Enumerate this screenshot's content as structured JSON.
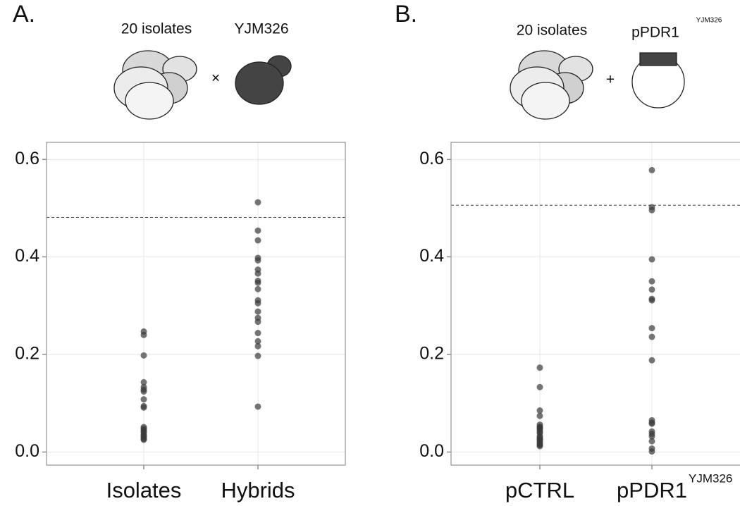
{
  "chart_data": [
    {
      "type": "strip",
      "panel_label": "A.",
      "annotations": [
        "20 isolates",
        "YJM326",
        "×"
      ],
      "categories": [
        "Isolates",
        "Hybrids"
      ],
      "series": [
        {
          "color": "#3a3a3a",
          "values": [
            0.247,
            0.24,
            0.198,
            0.143,
            0.133,
            0.128,
            0.124,
            0.108,
            0.094,
            0.091,
            0.051,
            0.048,
            0.045,
            0.042,
            0.04,
            0.035,
            0.033,
            0.03,
            0.027,
            0.025
          ]
        },
        {
          "color": "#3a3a3a",
          "values": [
            0.512,
            0.454,
            0.434,
            0.398,
            0.393,
            0.374,
            0.366,
            0.351,
            0.347,
            0.334,
            0.311,
            0.305,
            0.288,
            0.275,
            0.267,
            0.244,
            0.227,
            0.217,
            0.197,
            0.093
          ]
        }
      ],
      "hline": 0.481,
      "ylim": [
        -0.027,
        0.635
      ],
      "yticks": [
        {
          "value": 0,
          "label": "0.0"
        },
        0.2,
        0.4,
        0.6
      ],
      "grid": true
    },
    {
      "type": "strip",
      "panel_label": "B.",
      "annotations": [
        "20 isolates",
        "pPDR1",
        "YJM326",
        "+"
      ],
      "categories": [
        "pCTRL",
        "pPDR1"
      ],
      "category_superscripts": [
        null,
        "YJM326"
      ],
      "series": [
        {
          "color": "#3a3a3a",
          "values": [
            0.173,
            0.133,
            0.085,
            0.074,
            0.056,
            0.052,
            0.05,
            0.048,
            0.045,
            0.041,
            0.039,
            0.033,
            0.03,
            0.027,
            0.025,
            0.022,
            0.019,
            0.016,
            0.014,
            0.012
          ]
        },
        {
          "color": "#3a3a3a",
          "values": [
            0.578,
            0.502,
            0.496,
            0.395,
            0.35,
            0.333,
            0.314,
            0.311,
            0.254,
            0.236,
            0.188,
            0.065,
            0.06,
            0.058,
            0.042,
            0.037,
            0.032,
            0.022,
            0.007,
            0.001
          ]
        }
      ],
      "hline": 0.506,
      "ylim": [
        -0.027,
        0.635
      ],
      "yticks": [
        {
          "value": 0,
          "label": "0.0"
        },
        0.2,
        0.4,
        0.6
      ],
      "grid": true
    }
  ]
}
